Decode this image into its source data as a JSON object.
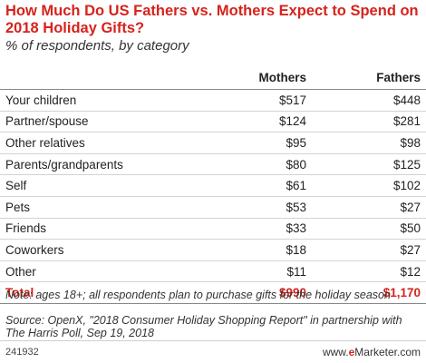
{
  "chart_data": {
    "type": "table",
    "title": "How Much Do US Fathers vs. Mothers Expect to Spend on 2018 Holiday Gifts?",
    "subtitle": "% of respondents, by category",
    "columns": [
      "Mothers",
      "Fathers"
    ],
    "rows": [
      {
        "category": "Your children",
        "mothers": "$517",
        "fathers": "$448"
      },
      {
        "category": "Partner/spouse",
        "mothers": "$124",
        "fathers": "$281"
      },
      {
        "category": "Other relatives",
        "mothers": "$95",
        "fathers": "$98"
      },
      {
        "category": "Parents/grandparents",
        "mothers": "$80",
        "fathers": "$125"
      },
      {
        "category": "Self",
        "mothers": "$61",
        "fathers": "$102"
      },
      {
        "category": "Pets",
        "mothers": "$53",
        "fathers": "$27"
      },
      {
        "category": "Friends",
        "mothers": "$33",
        "fathers": "$50"
      },
      {
        "category": "Coworkers",
        "mothers": "$18",
        "fathers": "$27"
      },
      {
        "category": "Other",
        "mothers": "$11",
        "fathers": "$12"
      }
    ],
    "total": {
      "category": "Total",
      "mothers": "$990",
      "fathers": "$1,170"
    },
    "values": {
      "mothers": [
        517,
        124,
        95,
        80,
        61,
        53,
        33,
        18,
        11,
        990
      ],
      "fathers": [
        448,
        281,
        98,
        125,
        102,
        27,
        50,
        27,
        12,
        1170
      ]
    }
  },
  "note": "Note: ages 18+; all respondents plan to purchase gifts for the holiday season",
  "source": "Source: OpenX, \"2018 Consumer Holiday Shopping Report\" in partnership with The Harris Poll, Sep 19, 2018",
  "footer": {
    "chart_id": "241932",
    "brand_prefix": "www.",
    "brand_e": "e",
    "brand_rest": "Marketer",
    "brand_suffix": ".com"
  },
  "colors": {
    "accent": "#d6231c",
    "text": "#222222",
    "rule": "#d3d3d3"
  }
}
